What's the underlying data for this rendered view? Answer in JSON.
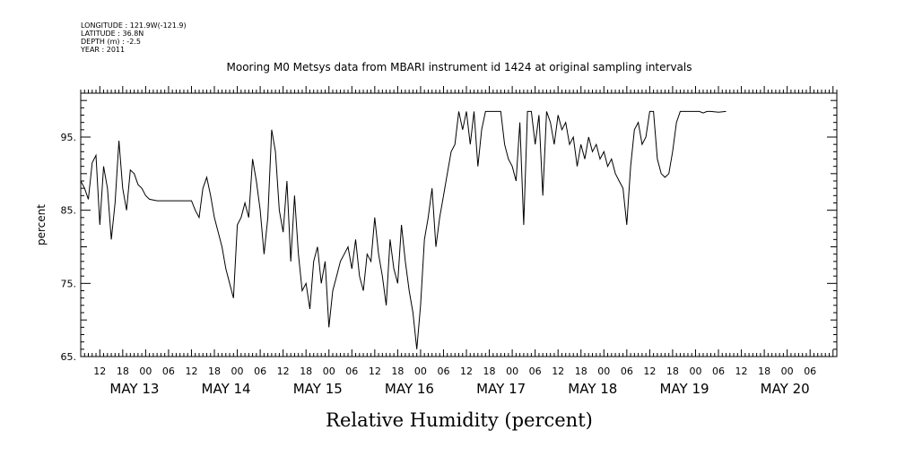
{
  "header": {
    "longitude": "LONGITUDE : 121.9W(-121.9)",
    "latitude": "LATITUDE : 36.8N",
    "depth": "DEPTH (m) : -2.5",
    "year": "YEAR : 2011",
    "title": "Mooring M0 Metsys data from MBARI instrument id 1424 at original sampling intervals"
  },
  "chart_data": {
    "type": "line",
    "xlabel": "Relative Humidity (percent)",
    "ylabel": "percent",
    "ylim": [
      65,
      101
    ],
    "yticks": [
      65,
      75,
      85,
      95
    ],
    "ytick_labels": [
      "65.",
      "75.",
      "85.",
      "95."
    ],
    "xlim": [
      "2011-05-12T07:00",
      "2011-05-20T13:00"
    ],
    "x_hour_labels": [
      "12",
      "18",
      "00",
      "06",
      "12",
      "18",
      "00",
      "06",
      "12",
      "18",
      "00",
      "06",
      "12",
      "18",
      "00",
      "06",
      "12",
      "18",
      "00",
      "06",
      "12",
      "18",
      "00",
      "06",
      "12",
      "18",
      "00",
      "06",
      "12",
      "18",
      "00",
      "06"
    ],
    "x_day_labels": [
      "MAY 13",
      "MAY 14",
      "MAY 15",
      "MAY 16",
      "MAY 17",
      "MAY 18",
      "MAY 19",
      "MAY 20"
    ],
    "series": [
      {
        "color": "#000000",
        "points": [
          [
            "2011-05-12T07:00",
            89
          ],
          [
            "2011-05-12T08:00",
            88
          ],
          [
            "2011-05-12T09:00",
            86.5
          ],
          [
            "2011-05-12T10:00",
            91.5
          ],
          [
            "2011-05-12T11:00",
            92.5
          ],
          [
            "2011-05-12T12:00",
            83
          ],
          [
            "2011-05-12T13:00",
            91
          ],
          [
            "2011-05-12T14:00",
            88
          ],
          [
            "2011-05-12T15:00",
            81
          ],
          [
            "2011-05-12T16:00",
            86
          ],
          [
            "2011-05-12T17:00",
            94.5
          ],
          [
            "2011-05-12T18:00",
            88
          ],
          [
            "2011-05-12T19:00",
            85
          ],
          [
            "2011-05-12T20:00",
            90.5
          ],
          [
            "2011-05-12T21:00",
            90
          ],
          [
            "2011-05-12T22:00",
            88.5
          ],
          [
            "2011-05-12T23:00",
            88
          ],
          [
            "2011-05-13T00:00",
            87
          ],
          [
            "2011-05-13T01:00",
            86.5
          ],
          [
            "2011-05-13T03:00",
            86.3
          ],
          [
            "2011-05-13T12:00",
            86.3
          ],
          [
            "2011-05-13T13:00",
            85
          ],
          [
            "2011-05-13T14:00",
            84
          ],
          [
            "2011-05-13T15:00",
            88
          ],
          [
            "2011-05-13T16:00",
            89.5
          ],
          [
            "2011-05-13T17:00",
            87
          ],
          [
            "2011-05-13T18:00",
            84
          ],
          [
            "2011-05-13T20:00",
            80
          ],
          [
            "2011-05-13T21:00",
            77
          ],
          [
            "2011-05-13T22:00",
            75
          ],
          [
            "2011-05-13T23:00",
            73
          ],
          [
            "2011-05-14T00:00",
            83
          ],
          [
            "2011-05-14T01:00",
            84
          ],
          [
            "2011-05-14T02:00",
            86
          ],
          [
            "2011-05-14T03:00",
            84
          ],
          [
            "2011-05-14T04:00",
            92
          ],
          [
            "2011-05-14T05:00",
            89
          ],
          [
            "2011-05-14T06:00",
            85
          ],
          [
            "2011-05-14T07:00",
            79
          ],
          [
            "2011-05-14T08:00",
            84
          ],
          [
            "2011-05-14T09:00",
            96
          ],
          [
            "2011-05-14T10:00",
            93
          ],
          [
            "2011-05-14T11:00",
            85
          ],
          [
            "2011-05-14T12:00",
            82
          ],
          [
            "2011-05-14T13:00",
            89
          ],
          [
            "2011-05-14T14:00",
            78
          ],
          [
            "2011-05-14T15:00",
            87
          ],
          [
            "2011-05-14T16:00",
            79
          ],
          [
            "2011-05-14T17:00",
            74
          ],
          [
            "2011-05-14T18:00",
            75
          ],
          [
            "2011-05-14T19:00",
            71.5
          ],
          [
            "2011-05-14T20:00",
            78
          ],
          [
            "2011-05-14T21:00",
            80
          ],
          [
            "2011-05-14T22:00",
            75
          ],
          [
            "2011-05-14T23:00",
            78
          ],
          [
            "2011-05-15T00:00",
            69
          ],
          [
            "2011-05-15T01:00",
            74
          ],
          [
            "2011-05-15T02:00",
            76
          ],
          [
            "2011-05-15T03:00",
            78
          ],
          [
            "2011-05-15T04:00",
            79
          ],
          [
            "2011-05-15T05:00",
            80
          ],
          [
            "2011-05-15T06:00",
            77
          ],
          [
            "2011-05-15T07:00",
            81
          ],
          [
            "2011-05-15T08:00",
            76
          ],
          [
            "2011-05-15T09:00",
            74
          ],
          [
            "2011-05-15T10:00",
            79
          ],
          [
            "2011-05-15T11:00",
            78
          ],
          [
            "2011-05-15T12:00",
            84
          ],
          [
            "2011-05-15T13:00",
            79
          ],
          [
            "2011-05-15T14:00",
            76
          ],
          [
            "2011-05-15T15:00",
            72
          ],
          [
            "2011-05-15T16:00",
            81
          ],
          [
            "2011-05-15T17:00",
            77
          ],
          [
            "2011-05-15T18:00",
            75
          ],
          [
            "2011-05-15T19:00",
            83
          ],
          [
            "2011-05-15T20:00",
            78
          ],
          [
            "2011-05-15T21:00",
            74
          ],
          [
            "2011-05-15T22:00",
            71
          ],
          [
            "2011-05-15T23:00",
            66
          ],
          [
            "2011-05-16T00:00",
            72
          ],
          [
            "2011-05-16T01:00",
            81
          ],
          [
            "2011-05-16T02:00",
            84
          ],
          [
            "2011-05-16T03:00",
            88
          ],
          [
            "2011-05-16T04:00",
            80
          ],
          [
            "2011-05-16T05:00",
            84
          ],
          [
            "2011-05-16T06:00",
            87
          ],
          [
            "2011-05-16T07:00",
            90
          ],
          [
            "2011-05-16T08:00",
            93
          ],
          [
            "2011-05-16T09:00",
            94
          ],
          [
            "2011-05-16T10:00",
            98.5
          ],
          [
            "2011-05-16T11:00",
            96
          ],
          [
            "2011-05-16T12:00",
            98.5
          ],
          [
            "2011-05-16T13:00",
            94
          ],
          [
            "2011-05-16T14:00",
            98.5
          ],
          [
            "2011-05-16T15:00",
            91
          ],
          [
            "2011-05-16T16:00",
            96
          ],
          [
            "2011-05-16T17:00",
            98.5
          ],
          [
            "2011-05-16T21:00",
            98.5
          ],
          [
            "2011-05-16T22:00",
            94
          ],
          [
            "2011-05-16T23:00",
            92
          ],
          [
            "2011-05-17T00:00",
            91
          ],
          [
            "2011-05-17T01:00",
            89
          ],
          [
            "2011-05-17T02:00",
            97
          ],
          [
            "2011-05-17T03:00",
            83
          ],
          [
            "2011-05-17T04:00",
            98.5
          ],
          [
            "2011-05-17T05:00",
            98.5
          ],
          [
            "2011-05-17T06:00",
            94
          ],
          [
            "2011-05-17T07:00",
            98
          ],
          [
            "2011-05-17T08:00",
            87
          ],
          [
            "2011-05-17T09:00",
            98.5
          ],
          [
            "2011-05-17T10:00",
            97
          ],
          [
            "2011-05-17T11:00",
            94
          ],
          [
            "2011-05-17T12:00",
            98
          ],
          [
            "2011-05-17T13:00",
            96
          ],
          [
            "2011-05-17T14:00",
            97
          ],
          [
            "2011-05-17T15:00",
            94
          ],
          [
            "2011-05-17T16:00",
            95
          ],
          [
            "2011-05-17T17:00",
            91
          ],
          [
            "2011-05-17T18:00",
            94
          ],
          [
            "2011-05-17T19:00",
            92
          ],
          [
            "2011-05-17T20:00",
            95
          ],
          [
            "2011-05-17T21:00",
            93
          ],
          [
            "2011-05-17T22:00",
            94
          ],
          [
            "2011-05-17T23:00",
            92
          ],
          [
            "2011-05-18T00:00",
            93
          ],
          [
            "2011-05-18T01:00",
            91
          ],
          [
            "2011-05-18T02:00",
            92
          ],
          [
            "2011-05-18T03:00",
            90
          ],
          [
            "2011-05-18T04:00",
            89
          ],
          [
            "2011-05-18T05:00",
            88
          ],
          [
            "2011-05-18T06:00",
            83
          ],
          [
            "2011-05-18T07:00",
            91
          ],
          [
            "2011-05-18T08:00",
            96
          ],
          [
            "2011-05-18T09:00",
            97
          ],
          [
            "2011-05-18T10:00",
            94
          ],
          [
            "2011-05-18T11:00",
            95
          ],
          [
            "2011-05-18T12:00",
            98.5
          ],
          [
            "2011-05-18T13:00",
            98.5
          ],
          [
            "2011-05-18T14:00",
            92
          ],
          [
            "2011-05-18T15:00",
            90
          ],
          [
            "2011-05-18T16:00",
            89.5
          ],
          [
            "2011-05-18T17:00",
            90
          ],
          [
            "2011-05-18T18:00",
            93
          ],
          [
            "2011-05-18T19:00",
            97
          ],
          [
            "2011-05-18T20:00",
            98.5
          ],
          [
            "2011-05-19T01:00",
            98.5
          ],
          [
            "2011-05-19T02:00",
            98.3
          ],
          [
            "2011-05-19T03:00",
            98.5
          ],
          [
            "2011-05-19T04:00",
            98.5
          ],
          [
            "2011-05-19T06:00",
            98.4
          ],
          [
            "2011-05-19T08:00",
            98.5
          ]
        ]
      }
    ]
  }
}
